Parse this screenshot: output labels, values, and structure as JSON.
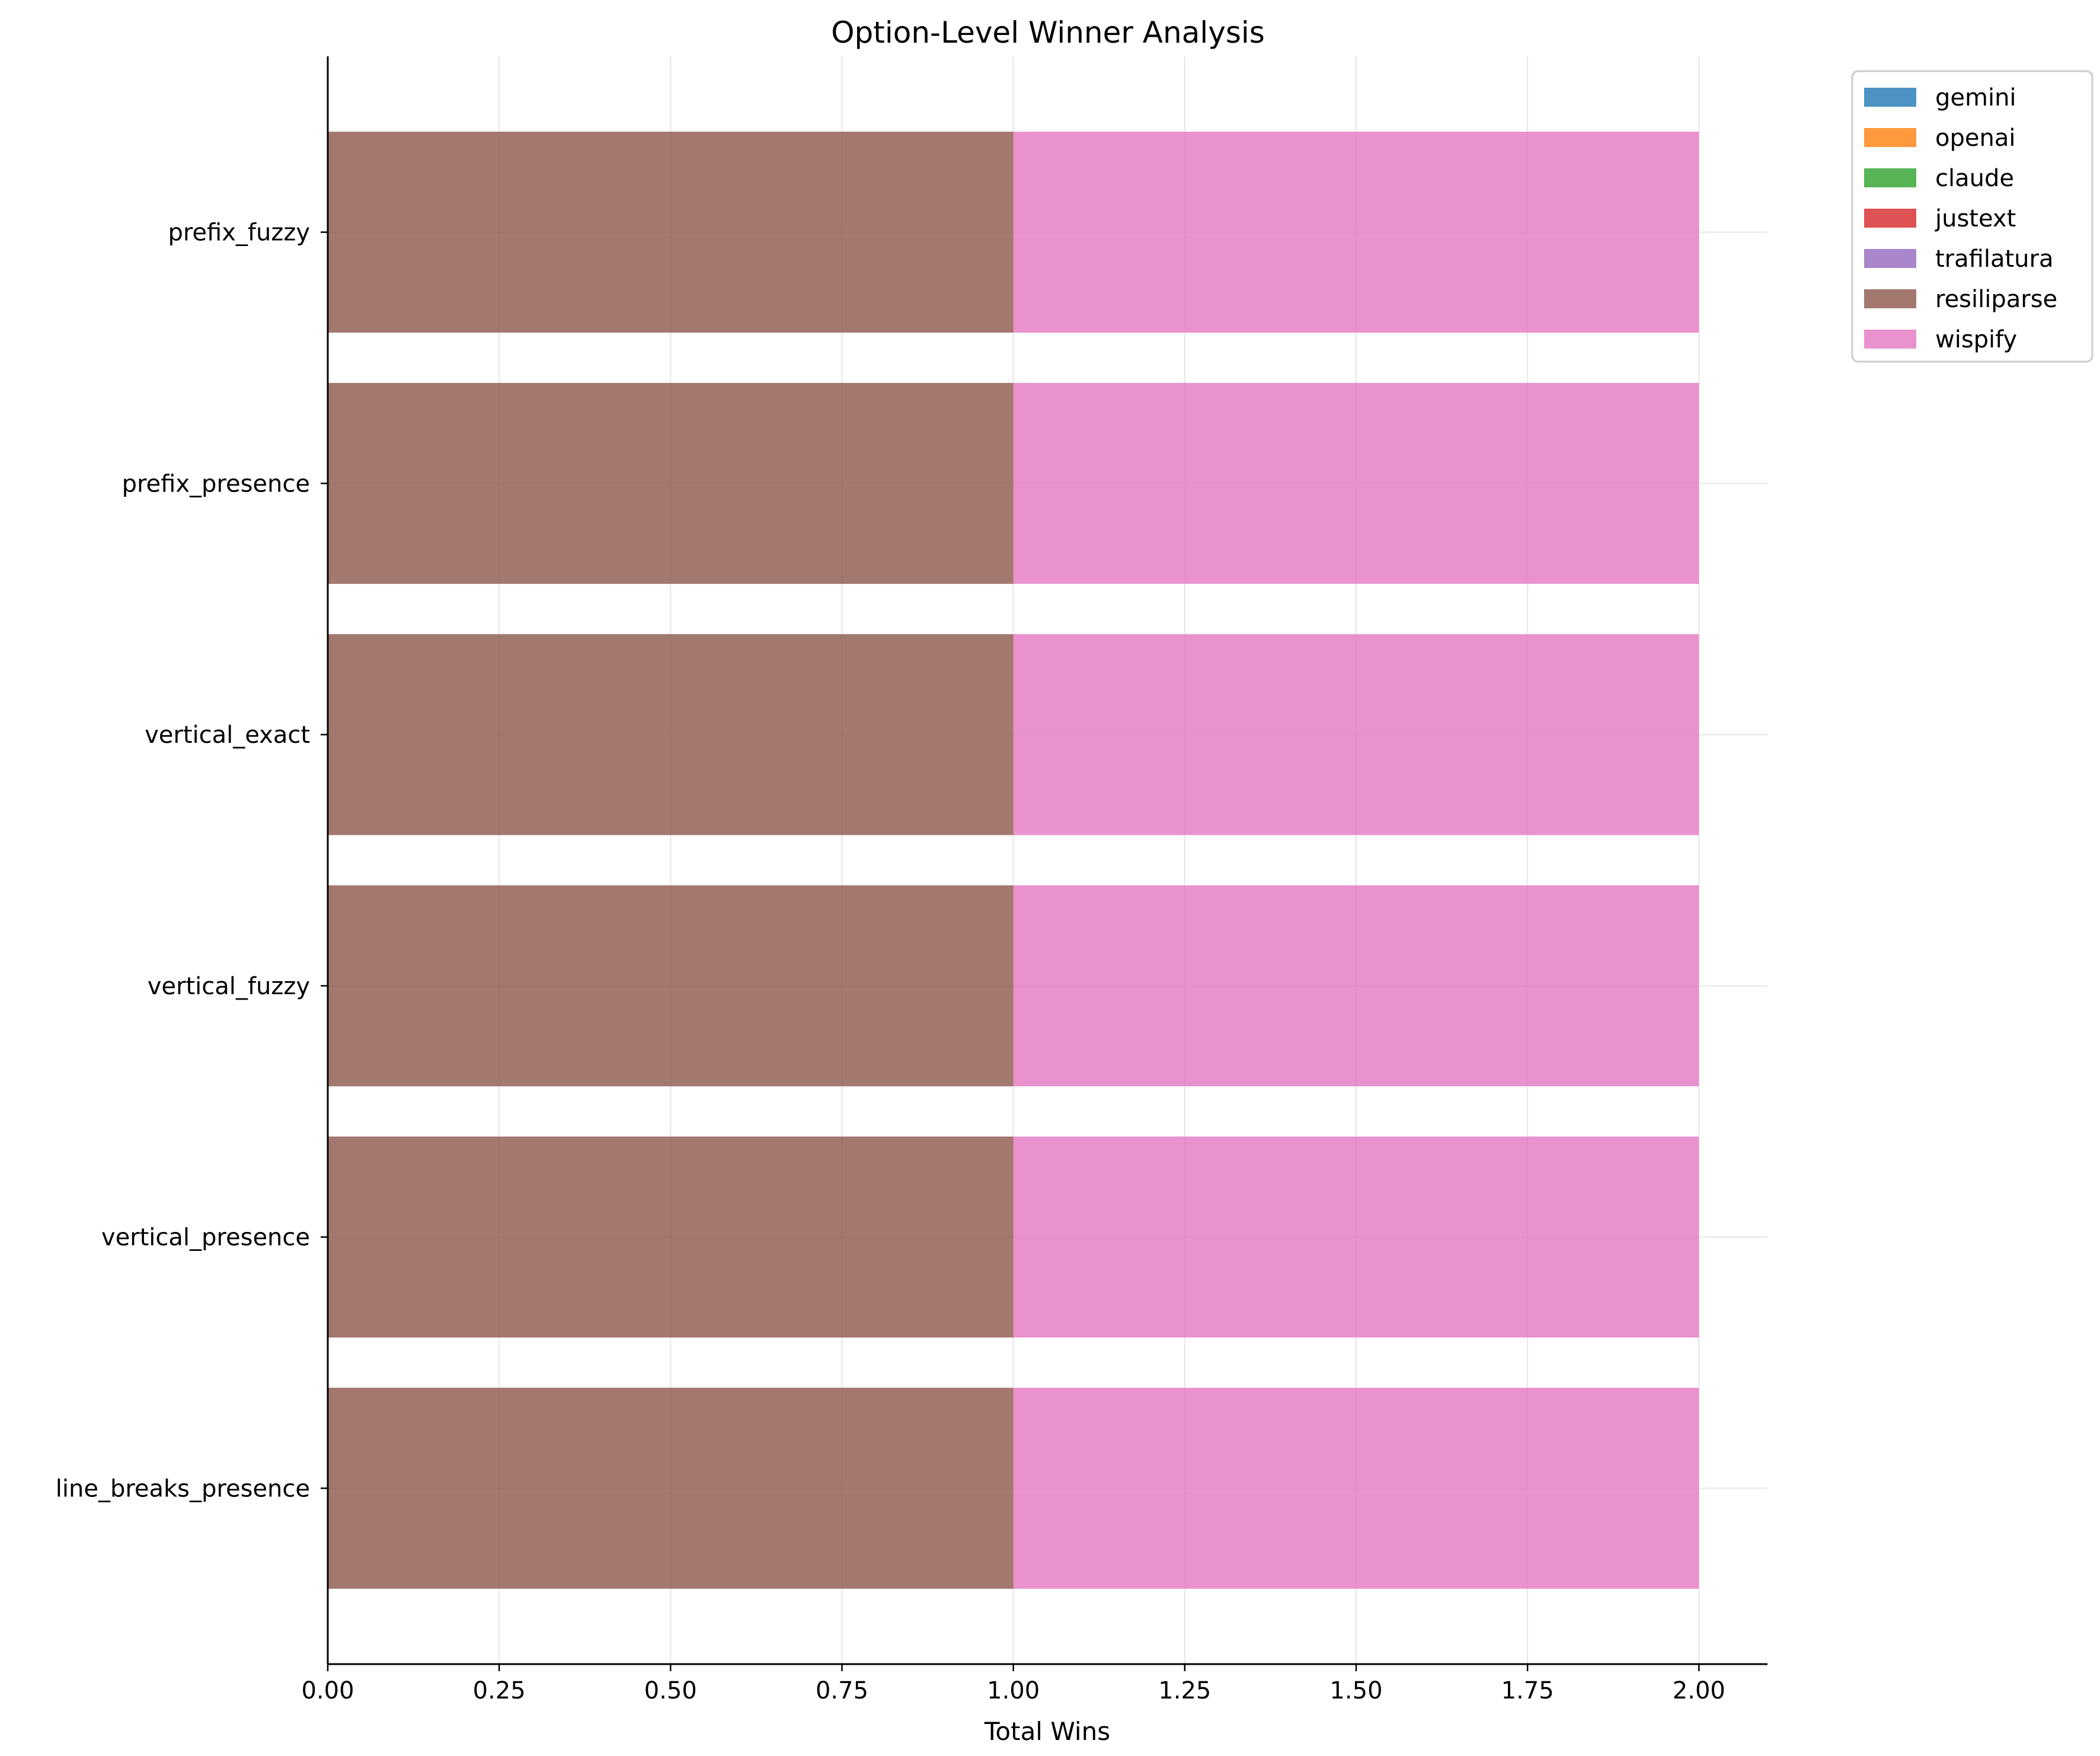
{
  "chart_data": {
    "type": "bar",
    "orientation": "horizontal",
    "stacked": true,
    "title": "Option-Level Winner Analysis",
    "xlabel": "Total Wins",
    "ylabel": "",
    "xlim": [
      0,
      2.1
    ],
    "x_ticks": [
      0.0,
      0.25,
      0.5,
      0.75,
      1.0,
      1.25,
      1.5,
      1.75,
      2.0
    ],
    "x_tick_labels": [
      "0.00",
      "0.25",
      "0.50",
      "0.75",
      "1.00",
      "1.25",
      "1.50",
      "1.75",
      "2.00"
    ],
    "categories": [
      "prefix_fuzzy",
      "prefix_presence",
      "vertical_exact",
      "vertical_fuzzy",
      "vertical_presence",
      "line_breaks_presence"
    ],
    "grid": true,
    "legend_position": "outside top-right",
    "series": [
      {
        "name": "gemini",
        "color": "#1f77b4",
        "values": [
          0,
          0,
          0,
          0,
          0,
          0
        ]
      },
      {
        "name": "openai",
        "color": "#ff7f0e",
        "values": [
          0,
          0,
          0,
          0,
          0,
          0
        ]
      },
      {
        "name": "claude",
        "color": "#2ca02c",
        "values": [
          0,
          0,
          0,
          0,
          0,
          0
        ]
      },
      {
        "name": "justext",
        "color": "#d62728",
        "values": [
          0,
          0,
          0,
          0,
          0,
          0
        ]
      },
      {
        "name": "trafilatura",
        "color": "#9467bd",
        "values": [
          0,
          0,
          0,
          0,
          0,
          0
        ]
      },
      {
        "name": "resiliparse",
        "color": "#8c564b",
        "values": [
          1,
          1,
          1,
          1,
          1,
          1
        ]
      },
      {
        "name": "wispify",
        "color": "#e377c2",
        "values": [
          1,
          1,
          1,
          1,
          1,
          1
        ]
      }
    ]
  }
}
